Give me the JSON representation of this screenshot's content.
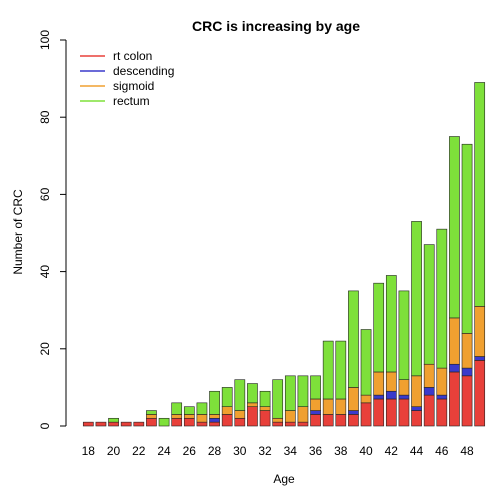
{
  "chart_data": {
    "type": "bar",
    "stacked": true,
    "title": "CRC is increasing by age",
    "xlabel": "Age",
    "ylabel": "Number of CRC",
    "ylim": [
      0,
      100
    ],
    "yticks": [
      0,
      20,
      40,
      60,
      80,
      100
    ],
    "categories": [
      "18",
      "19",
      "20",
      "21",
      "22",
      "23",
      "24",
      "25",
      "26",
      "27",
      "28",
      "29",
      "30",
      "31",
      "32",
      "33",
      "34",
      "35",
      "36",
      "37",
      "38",
      "39",
      "40",
      "41",
      "42",
      "43",
      "44",
      "45",
      "46",
      "47",
      "48",
      "49"
    ],
    "xtick_labels": [
      "18",
      "20",
      "22",
      "24",
      "26",
      "28",
      "30",
      "32",
      "34",
      "36",
      "38",
      "40",
      "42",
      "44",
      "46",
      "48"
    ],
    "legend_position": "top-left",
    "series": [
      {
        "name": "rt colon",
        "color": "#e8403a",
        "values": [
          1,
          1,
          1,
          1,
          1,
          2,
          0,
          2,
          2,
          1,
          1,
          3,
          2,
          5,
          4,
          1,
          1,
          1,
          3,
          3,
          3,
          3,
          6,
          7,
          7,
          7,
          4,
          8,
          7,
          14,
          13,
          17
        ]
      },
      {
        "name": "descending",
        "color": "#3a3acc",
        "values": [
          0,
          0,
          0,
          0,
          0,
          0,
          0,
          0,
          0,
          0,
          1,
          0,
          0,
          0,
          0,
          0,
          0,
          0,
          1,
          0,
          0,
          1,
          0,
          1,
          2,
          1,
          1,
          2,
          1,
          2,
          2,
          1
        ]
      },
      {
        "name": "sigmoid",
        "color": "#f0a030",
        "values": [
          0,
          0,
          0,
          0,
          0,
          1,
          0,
          1,
          1,
          2,
          1,
          2,
          2,
          1,
          1,
          1,
          3,
          4,
          3,
          4,
          4,
          6,
          2,
          6,
          5,
          4,
          8,
          6,
          7,
          12,
          9,
          13
        ]
      },
      {
        "name": "rectum",
        "color": "#7ee03a",
        "values": [
          0,
          0,
          1,
          0,
          0,
          1,
          2,
          3,
          2,
          3,
          6,
          5,
          8,
          5,
          4,
          10,
          9,
          8,
          6,
          15,
          15,
          25,
          17,
          23,
          25,
          23,
          40,
          31,
          36,
          47,
          49,
          58
        ]
      }
    ]
  }
}
